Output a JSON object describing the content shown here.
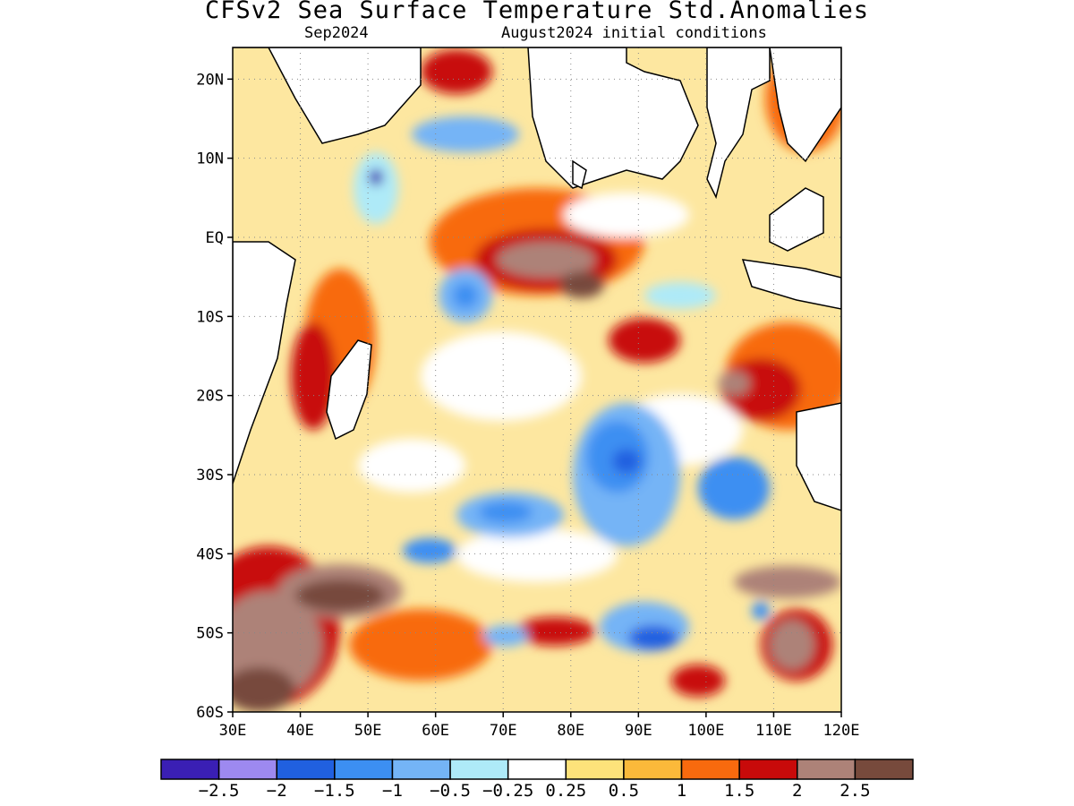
{
  "title": "CFSv2 Sea Surface Temperature Std.Anomalies",
  "subtitle_left": "Sep2024",
  "subtitle_right": "August2024 initial conditions",
  "map": {
    "x_ticks": [
      "30E",
      "40E",
      "50E",
      "60E",
      "70E",
      "80E",
      "90E",
      "100E",
      "110E",
      "120E"
    ],
    "y_ticks": [
      "20N",
      "10N",
      "EQ",
      "10S",
      "20S",
      "30S",
      "40S",
      "50S",
      "60S"
    ],
    "lon_range": [
      30,
      120
    ],
    "lat_range": [
      -60,
      24
    ]
  },
  "colorbar": {
    "colors": [
      "#3a1fb4",
      "#9d89f0",
      "#2060e0",
      "#3c8ff2",
      "#74b4f6",
      "#aeeaf8",
      "#ffffff",
      "#fde27a",
      "#fbb93a",
      "#f86a0e",
      "#c80a0a",
      "#ad8278",
      "#774a3c"
    ],
    "labels": [
      "−2.5",
      "−2",
      "−1.5",
      "−1",
      "−0.5",
      "−0.25",
      "0.25",
      "0.5",
      "1",
      "1.5",
      "2",
      "2.5"
    ]
  }
}
